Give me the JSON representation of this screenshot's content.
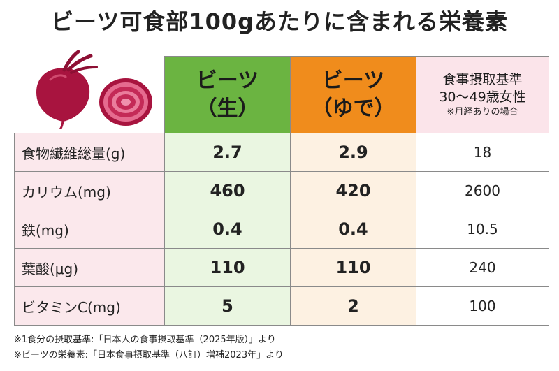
{
  "title": "ビーツ可食部100gあたりに含まれる栄養素",
  "header": {
    "raw_line1": "ビーツ",
    "raw_line2": "（生）",
    "boiled_line1": "ビーツ",
    "boiled_line2": "（ゆで）",
    "ref_line1": "食事摂取基準",
    "ref_line2": "30〜49歳女性",
    "ref_note": "※月経ありの場合"
  },
  "rows": [
    {
      "label": "食物繊維総量(g)",
      "raw": "2.7",
      "boiled": "2.9",
      "ref": "18"
    },
    {
      "label": "カリウム(mg)",
      "raw": "460",
      "boiled": "420",
      "ref": "2600"
    },
    {
      "label": "鉄(mg)",
      "raw": "0.4",
      "boiled": "0.4",
      "ref": "10.5"
    },
    {
      "label": "葉酸(μg)",
      "raw": "110",
      "boiled": "110",
      "ref": "240"
    },
    {
      "label": "ビタミンC(mg)",
      "raw": "5",
      "boiled": "2",
      "ref": "100"
    }
  ],
  "footnotes": [
    "※1食分の摂取基準:「日本人の食事摂取基準（2025年版）」より",
    "※ビーツの栄養素:「日本食事摂取基準（八訂）増補2023年」より"
  ],
  "colors": {
    "raw_header": "#6bb441",
    "boiled_header": "#f08c1c",
    "ref_header": "#fbe4ea",
    "label_bg": "#fbe8ec",
    "raw_bg": "#eaf6e1",
    "boiled_bg": "#fdf1e2"
  }
}
